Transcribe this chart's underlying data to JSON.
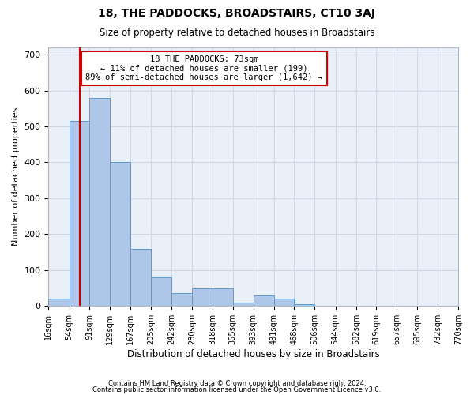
{
  "title": "18, THE PADDOCKS, BROADSTAIRS, CT10 3AJ",
  "subtitle": "Size of property relative to detached houses in Broadstairs",
  "xlabel": "Distribution of detached houses by size in Broadstairs",
  "ylabel": "Number of detached properties",
  "footnote1": "Contains HM Land Registry data © Crown copyright and database right 2024.",
  "footnote2": "Contains public sector information licensed under the Open Government Licence v3.0.",
  "annotation_text": "18 THE PADDOCKS: 73sqm\n← 11% of detached houses are smaller (199)\n89% of semi-detached houses are larger (1,642) →",
  "property_size": 73,
  "bar_color": "#aec6e8",
  "bar_edge_color": "#5b9bd5",
  "grid_color": "#d0d8e8",
  "background_color": "#eaf0f8",
  "vline_color": "#cc0000",
  "annotation_box_color": "#cc0000",
  "bin_edges": [
    16,
    54,
    91,
    129,
    167,
    205,
    242,
    280,
    318,
    355,
    393,
    431,
    468,
    506,
    544,
    582,
    619,
    657,
    695,
    732,
    770
  ],
  "bin_labels": [
    "16sqm",
    "54sqm",
    "91sqm",
    "129sqm",
    "167sqm",
    "205sqm",
    "242sqm",
    "280sqm",
    "318sqm",
    "355sqm",
    "393sqm",
    "431sqm",
    "468sqm",
    "506sqm",
    "544sqm",
    "582sqm",
    "619sqm",
    "657sqm",
    "695sqm",
    "732sqm",
    "770sqm"
  ],
  "bar_heights": [
    20,
    515,
    580,
    400,
    160,
    80,
    35,
    50,
    50,
    10,
    30,
    20,
    5,
    0,
    0,
    0,
    0,
    0,
    0,
    0
  ],
  "ylim": [
    0,
    720
  ],
  "yticks": [
    0,
    100,
    200,
    300,
    400,
    500,
    600,
    700
  ],
  "figsize": [
    6.0,
    5.0
  ],
  "dpi": 100
}
